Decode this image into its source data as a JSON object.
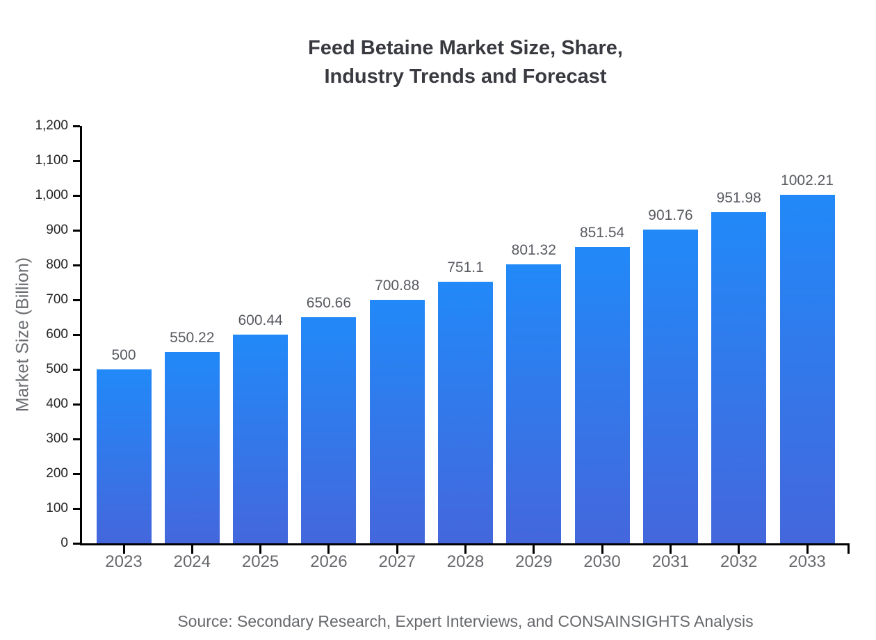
{
  "title": "Feed Betaine Market Size, Share,\nIndustry Trends and Forecast",
  "source": "Source: Secondary Research, Expert Interviews, and CONSAINSIGHTS Analysis",
  "colors": {
    "title": "#383A40",
    "axis": "#000000",
    "y_tick_label": "#222222",
    "x_tick_label": "#67696D",
    "value_label": "#575A60",
    "source": "#66686C",
    "bar_gradient_top": "#2289F8",
    "bar_gradient_bottom": "#4467DC"
  },
  "chart_data": {
    "type": "bar",
    "title": "Feed Betaine Market Size, Share, Industry Trends and Forecast",
    "categories": [
      "2023",
      "2024",
      "2025",
      "2026",
      "2027",
      "2028",
      "2029",
      "2030",
      "2031",
      "2032",
      "2033"
    ],
    "values": [
      500,
      550.22,
      600.44,
      650.66,
      700.88,
      751.1,
      801.32,
      851.54,
      901.76,
      951.98,
      1002.21
    ],
    "value_labels": [
      "500",
      "550.22",
      "600.44",
      "650.66",
      "700.88",
      "751.1",
      "801.32",
      "851.54",
      "901.76",
      "951.98",
      "1002.21"
    ],
    "xlabel": "",
    "ylabel": "Market Size (Billion)",
    "ylim": [
      0,
      1200
    ],
    "ytick_step": 100,
    "ytick_labels": [
      "0",
      "100",
      "200",
      "300",
      "400",
      "500",
      "600",
      "700",
      "800",
      "900",
      "1,000",
      "1,100",
      "1,200"
    ],
    "grid": false,
    "legend": false,
    "bar_color_top": "#2289F8",
    "bar_color_bottom": "#4467DC"
  }
}
